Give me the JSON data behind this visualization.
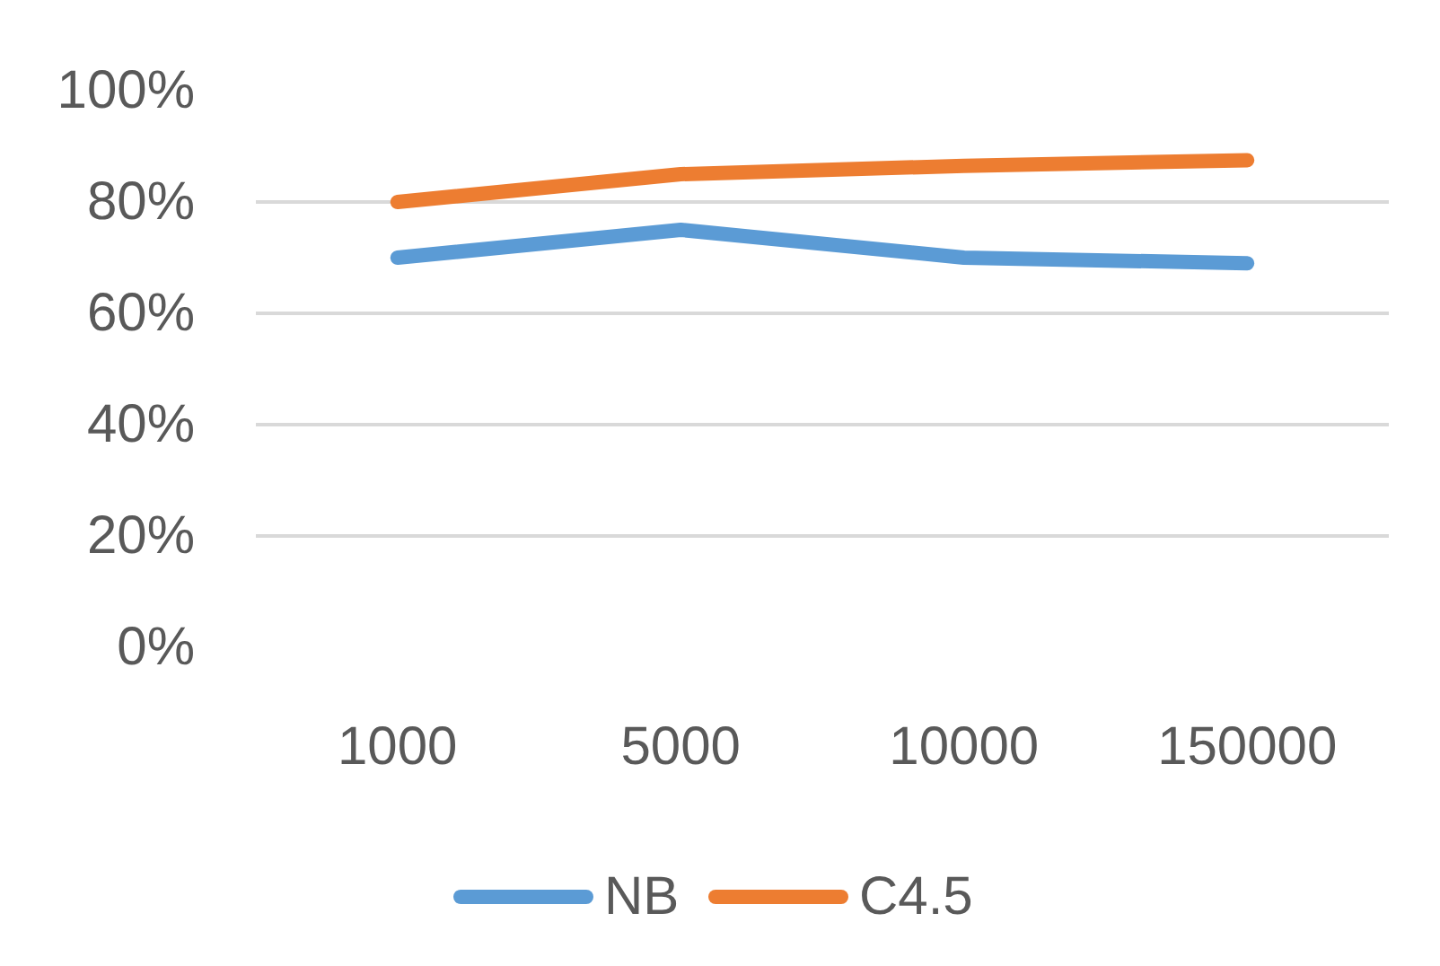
{
  "chart_data": {
    "type": "line",
    "categories": [
      "1000",
      "5000",
      "10000",
      "150000"
    ],
    "series": [
      {
        "name": "NB",
        "color": "#5b9bd5",
        "values": [
          70,
          75,
          70,
          69
        ]
      },
      {
        "name": "C4.5",
        "color": "#ed7d31",
        "values": [
          80,
          85,
          86.5,
          87.5
        ]
      }
    ],
    "ylim": [
      0,
      100
    ],
    "yticks": [
      {
        "value": 0,
        "label": "0%"
      },
      {
        "value": 20,
        "label": "20%"
      },
      {
        "value": 40,
        "label": "40%"
      },
      {
        "value": 60,
        "label": "60%"
      },
      {
        "value": 80,
        "label": "80%"
      },
      {
        "value": 100,
        "label": "100%"
      }
    ],
    "grid": "y",
    "legend": "bottom",
    "line_style": "solid"
  }
}
